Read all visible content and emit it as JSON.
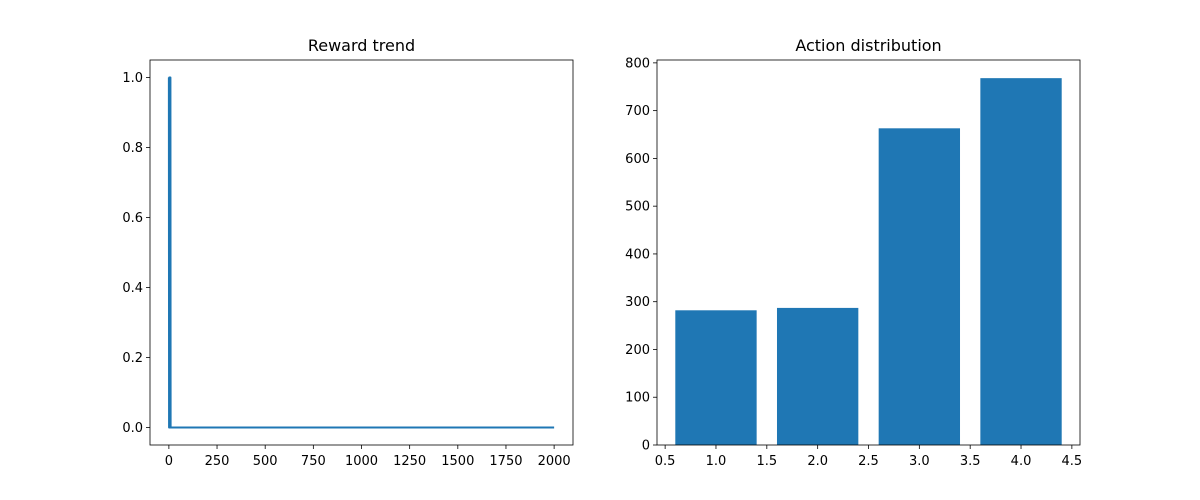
{
  "chart_data": [
    {
      "type": "line",
      "title": "Reward trend",
      "xlabel": "",
      "ylabel": "",
      "xlim": [
        -98,
        2098
      ],
      "ylim": [
        -0.05,
        1.05
      ],
      "xticks": [
        0,
        250,
        500,
        750,
        1000,
        1250,
        1500,
        1750,
        2000
      ],
      "xtick_labels": [
        "0",
        "250",
        "500",
        "750",
        "1000",
        "1250",
        "1500",
        "1750",
        "2000"
      ],
      "yticks": [
        0.0,
        0.2,
        0.4,
        0.6,
        0.8,
        1.0
      ],
      "ytick_labels": [
        "0.0",
        "0.2",
        "0.4",
        "0.6",
        "0.8",
        "1.0"
      ],
      "grid": false,
      "color": "#1f77b4",
      "series": [
        {
          "x": [
            0,
            1,
            2,
            3,
            4,
            5,
            6,
            7,
            8,
            9,
            10,
            2000
          ],
          "y": [
            1,
            0,
            1,
            0,
            1,
            0,
            1,
            0,
            1,
            0,
            0,
            0
          ]
        }
      ]
    },
    {
      "type": "bar",
      "title": "Action distribution",
      "xlabel": "",
      "ylabel": "",
      "xlim": [
        0.42,
        4.58
      ],
      "ylim": [
        0,
        806
      ],
      "xticks": [
        0.5,
        1.0,
        1.5,
        2.0,
        2.5,
        3.0,
        3.5,
        4.0,
        4.5
      ],
      "xtick_labels": [
        "0.5",
        "1.0",
        "1.5",
        "2.0",
        "2.5",
        "3.0",
        "3.5",
        "4.0",
        "4.5"
      ],
      "yticks": [
        0,
        100,
        200,
        300,
        400,
        500,
        600,
        700,
        800
      ],
      "ytick_labels": [
        "0",
        "100",
        "200",
        "300",
        "400",
        "500",
        "600",
        "700",
        "800"
      ],
      "grid": false,
      "color": "#1f77b4",
      "categories": [
        1,
        2,
        3,
        4
      ],
      "values": [
        282,
        287,
        663,
        768
      ]
    }
  ]
}
